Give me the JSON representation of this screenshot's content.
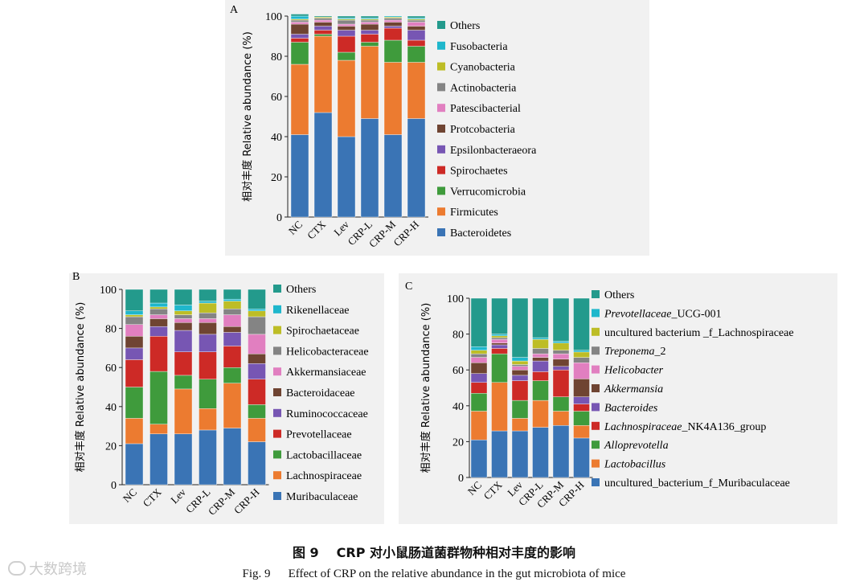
{
  "caption": {
    "cn_num": "图 9",
    "cn_text": "CRP 对小鼠肠道菌群物种相对丰度的影响",
    "en_num": "Fig. 9",
    "en_text": "Effect of CRP on the relative abundance in the gut microbiota of mice"
  },
  "watermark": {
    "text": "大数跨境"
  },
  "colors": {
    "blue": "#3a74b5",
    "orange": "#ec7b30",
    "green": "#3f9b3c",
    "red": "#cd2a26",
    "purple": "#7756b3",
    "brown": "#6f4432",
    "pink": "#e17fc0",
    "gray": "#848484",
    "olive": "#bdbd26",
    "cyan": "#1fb7cc",
    "teal": "#239a8c"
  },
  "chart_data": [
    {
      "panel": "A",
      "type": "bar",
      "stacked": true,
      "ylabel": "相对丰度 Relative abundance (%)",
      "ylim": [
        0,
        100
      ],
      "yticks": [
        "0",
        "20",
        "40",
        "60",
        "80",
        "100"
      ],
      "categories": [
        "NC",
        "CTX",
        "Lev",
        "CRP-L",
        "CRP-M",
        "CRP-H"
      ],
      "series": [
        {
          "name": "Bacteroidetes",
          "color": "#3a74b5",
          "values": [
            41,
            52,
            40,
            49,
            41,
            49
          ]
        },
        {
          "name": "Firmicutes",
          "color": "#ec7b30",
          "values": [
            35,
            38,
            38,
            36,
            36,
            28
          ]
        },
        {
          "name": "Verrucomicrobia",
          "color": "#3f9b3c",
          "values": [
            11,
            1,
            4,
            2,
            11,
            8
          ]
        },
        {
          "name": "Spirochaetes",
          "color": "#cd2a26",
          "values": [
            2,
            2,
            8,
            4,
            6,
            3
          ]
        },
        {
          "name": "Epsilonbacteraeora",
          "color": "#7756b3",
          "values": [
            2,
            2,
            3,
            2,
            1,
            5
          ]
        },
        {
          "name": "Protcobacteria",
          "color": "#6f4432",
          "values": [
            5,
            2,
            2,
            3,
            2,
            2
          ]
        },
        {
          "name": "Patescibacterial",
          "color": "#e17fc0",
          "values": [
            1,
            1,
            1,
            1,
            1,
            2
          ]
        },
        {
          "name": "Actinobacteria",
          "color": "#848484",
          "values": [
            1,
            1,
            2,
            1,
            1,
            1
          ]
        },
        {
          "name": "Cyanobacteria",
          "color": "#bdbd26",
          "values": [
            0.5,
            0.5,
            0.5,
            0.5,
            0.5,
            0.5
          ]
        },
        {
          "name": "Fusobacteria",
          "color": "#1fb7cc",
          "values": [
            1.5,
            0,
            0.5,
            0.5,
            0.5,
            0.5
          ]
        },
        {
          "name": "Others",
          "color": "#239a8c",
          "values": [
            1,
            0.5,
            1,
            1,
            0,
            1
          ]
        }
      ]
    },
    {
      "panel": "B",
      "type": "bar",
      "stacked": true,
      "ylabel": "相对丰度 Relative abundance (%)",
      "ylim": [
        0,
        100
      ],
      "yticks": [
        "0",
        "20",
        "40",
        "60",
        "80",
        "100"
      ],
      "categories": [
        "NC",
        "CTX",
        "Lev",
        "CRP-L",
        "CRP-M",
        "CRP-H"
      ],
      "series": [
        {
          "name": "Muribaculaceae",
          "color": "#3a74b5",
          "values": [
            21,
            26,
            26,
            28,
            29,
            22
          ]
        },
        {
          "name": "Lachnospiraceae",
          "color": "#ec7b30",
          "values": [
            13,
            5,
            23,
            11,
            23,
            12
          ]
        },
        {
          "name": "Lactobacillaceae",
          "color": "#3f9b3c",
          "values": [
            16,
            27,
            7,
            15,
            8,
            7
          ]
        },
        {
          "name": "Prevotellaceae",
          "color": "#cd2a26",
          "values": [
            14,
            18,
            12,
            14,
            11,
            13
          ]
        },
        {
          "name": "Ruminococcaceae",
          "color": "#7756b3",
          "values": [
            6,
            5,
            11,
            9,
            7,
            8
          ]
        },
        {
          "name": "Bacteroidaceae",
          "color": "#6f4432",
          "values": [
            6,
            4,
            4,
            6,
            3,
            5
          ]
        },
        {
          "name": "Akkermansiaceae",
          "color": "#e17fc0",
          "values": [
            6,
            2,
            2,
            2,
            6,
            10
          ]
        },
        {
          "name": "Helicobacteraceae",
          "color": "#848484",
          "values": [
            4,
            3,
            2,
            3,
            3,
            9
          ]
        },
        {
          "name": "Spirochaetaceae",
          "color": "#bdbd26",
          "values": [
            1,
            1,
            2,
            5,
            4,
            3
          ]
        },
        {
          "name": "Rikenellaceae",
          "color": "#1fb7cc",
          "values": [
            2,
            2,
            3,
            1,
            1,
            1
          ]
        },
        {
          "name": "Others",
          "color": "#239a8c",
          "values": [
            11,
            7,
            8,
            6,
            5,
            10
          ]
        }
      ]
    },
    {
      "panel": "C",
      "type": "bar",
      "stacked": true,
      "ylabel": "相对丰度 Relative abundance (%)",
      "ylim": [
        0,
        100
      ],
      "yticks": [
        "0",
        "20",
        "40",
        "60",
        "80",
        "100"
      ],
      "categories": [
        "NC",
        "CTX",
        "Lev",
        "CRP-L",
        "CRP-M",
        "CRP-H"
      ],
      "series": [
        {
          "name": "uncultured_bacterium_f_Muribaculaceae",
          "italic_part": "",
          "roman_part": "uncultured_bacterium_f_Muribaculaceae",
          "color": "#3a74b5",
          "values": [
            21,
            26,
            26,
            28,
            29,
            22
          ]
        },
        {
          "name": "Lactobacillus",
          "italic_part": "Lactobacillus",
          "roman_part": "",
          "color": "#ec7b30",
          "values": [
            16,
            27,
            7,
            15,
            8,
            7
          ]
        },
        {
          "name": "Alloprevotella",
          "italic_part": "Alloprevotella",
          "roman_part": "",
          "color": "#3f9b3c",
          "values": [
            10,
            16,
            10,
            11,
            8,
            8
          ]
        },
        {
          "name": "Lachnospiraceae_NK4A136_group",
          "italic_part": "Lachnospiraceae",
          "roman_part": "_NK4A136_group",
          "color": "#cd2a26",
          "values": [
            6,
            3,
            11,
            5,
            15,
            4
          ]
        },
        {
          "name": "Bacteroides",
          "italic_part": "Bacteroides",
          "roman_part": "",
          "color": "#7756b3",
          "values": [
            5,
            2,
            3,
            6,
            2,
            4
          ]
        },
        {
          "name": "Akkermansia",
          "italic_part": "Akkermansia",
          "roman_part": "",
          "color": "#6f4432",
          "values": [
            6,
            1,
            3,
            2,
            4,
            10
          ]
        },
        {
          "name": "Helicobacter",
          "italic_part": "Helicobacter",
          "roman_part": "",
          "color": "#e17fc0",
          "values": [
            3,
            2,
            2,
            2,
            3,
            9
          ]
        },
        {
          "name": "Treponema_2",
          "italic_part": "Treponema",
          "roman_part": "_2",
          "color": "#848484",
          "values": [
            2,
            1,
            1,
            3,
            2,
            3
          ]
        },
        {
          "name": "uncultured bacterium _f_Lachnospiraceae",
          "italic_part": "",
          "roman_part": "uncultured bacterium _f_Lachnospiraceae",
          "color": "#bdbd26",
          "values": [
            2,
            1,
            2,
            5,
            4,
            3
          ]
        },
        {
          "name": "Prevotellaceae_UCG-001",
          "italic_part": "Prevotellaceae",
          "roman_part": "_UCG-001",
          "color": "#1fb7cc",
          "values": [
            2,
            1,
            2,
            1,
            1,
            1
          ]
        },
        {
          "name": "Others",
          "italic_part": "",
          "roman_part": "Others",
          "color": "#239a8c",
          "values": [
            27,
            20,
            33,
            22,
            24,
            29
          ]
        }
      ]
    }
  ]
}
